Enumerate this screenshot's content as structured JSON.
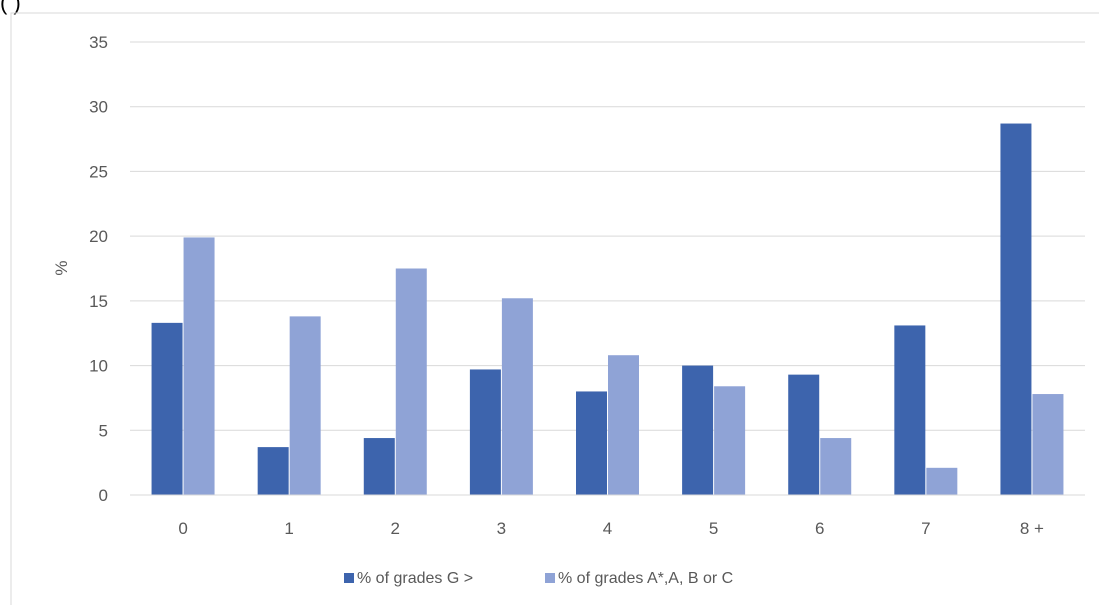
{
  "header_fragment": "(                 )",
  "chart_data": {
    "type": "bar",
    "title": "",
    "xlabel": "",
    "ylabel": "%",
    "categories": [
      "0",
      "1",
      "2",
      "3",
      "4",
      "5",
      "6",
      "7",
      "8 +"
    ],
    "series": [
      {
        "name": "% of grades G >",
        "color": "#3d64ad",
        "values": [
          13.3,
          3.7,
          4.4,
          9.7,
          8.0,
          10.0,
          9.3,
          13.1,
          28.7
        ]
      },
      {
        "name": "% of grades A*,A, B or C",
        "color": "#8fa3d6",
        "values": [
          19.9,
          13.8,
          17.5,
          15.2,
          10.8,
          8.4,
          4.4,
          2.1,
          7.8
        ]
      }
    ],
    "ylim": [
      0,
      35
    ],
    "yticks": [
      0,
      5,
      10,
      15,
      20,
      25,
      30,
      35
    ],
    "grid": true,
    "legend": "bottom"
  }
}
